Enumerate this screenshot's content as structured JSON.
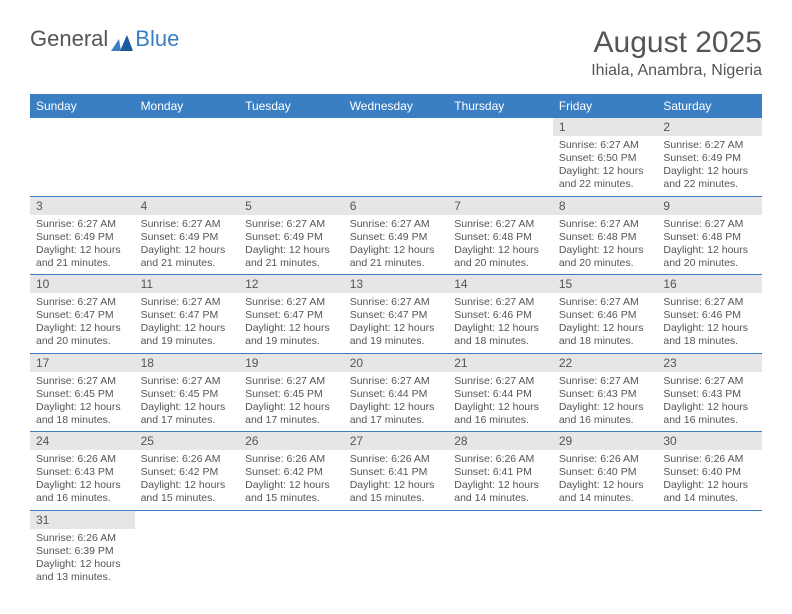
{
  "logo": {
    "text1": "General",
    "text2": "Blue"
  },
  "title": "August 2025",
  "subtitle": "Ihiala, Anambra, Nigeria",
  "colors": {
    "header_bg": "#3a7fc4",
    "header_text": "#ffffff",
    "daynum_bg": "#e6e6e6",
    "text": "#555555",
    "row_border": "#3a7fc4"
  },
  "daynames": [
    "Sunday",
    "Monday",
    "Tuesday",
    "Wednesday",
    "Thursday",
    "Friday",
    "Saturday"
  ],
  "weeks": [
    [
      null,
      null,
      null,
      null,
      null,
      {
        "n": "1",
        "sr": "6:27 AM",
        "ss": "6:50 PM",
        "dl": "12 hours and 22 minutes."
      },
      {
        "n": "2",
        "sr": "6:27 AM",
        "ss": "6:49 PM",
        "dl": "12 hours and 22 minutes."
      }
    ],
    [
      {
        "n": "3",
        "sr": "6:27 AM",
        "ss": "6:49 PM",
        "dl": "12 hours and 21 minutes."
      },
      {
        "n": "4",
        "sr": "6:27 AM",
        "ss": "6:49 PM",
        "dl": "12 hours and 21 minutes."
      },
      {
        "n": "5",
        "sr": "6:27 AM",
        "ss": "6:49 PM",
        "dl": "12 hours and 21 minutes."
      },
      {
        "n": "6",
        "sr": "6:27 AM",
        "ss": "6:49 PM",
        "dl": "12 hours and 21 minutes."
      },
      {
        "n": "7",
        "sr": "6:27 AM",
        "ss": "6:48 PM",
        "dl": "12 hours and 20 minutes."
      },
      {
        "n": "8",
        "sr": "6:27 AM",
        "ss": "6:48 PM",
        "dl": "12 hours and 20 minutes."
      },
      {
        "n": "9",
        "sr": "6:27 AM",
        "ss": "6:48 PM",
        "dl": "12 hours and 20 minutes."
      }
    ],
    [
      {
        "n": "10",
        "sr": "6:27 AM",
        "ss": "6:47 PM",
        "dl": "12 hours and 20 minutes."
      },
      {
        "n": "11",
        "sr": "6:27 AM",
        "ss": "6:47 PM",
        "dl": "12 hours and 19 minutes."
      },
      {
        "n": "12",
        "sr": "6:27 AM",
        "ss": "6:47 PM",
        "dl": "12 hours and 19 minutes."
      },
      {
        "n": "13",
        "sr": "6:27 AM",
        "ss": "6:47 PM",
        "dl": "12 hours and 19 minutes."
      },
      {
        "n": "14",
        "sr": "6:27 AM",
        "ss": "6:46 PM",
        "dl": "12 hours and 18 minutes."
      },
      {
        "n": "15",
        "sr": "6:27 AM",
        "ss": "6:46 PM",
        "dl": "12 hours and 18 minutes."
      },
      {
        "n": "16",
        "sr": "6:27 AM",
        "ss": "6:46 PM",
        "dl": "12 hours and 18 minutes."
      }
    ],
    [
      {
        "n": "17",
        "sr": "6:27 AM",
        "ss": "6:45 PM",
        "dl": "12 hours and 18 minutes."
      },
      {
        "n": "18",
        "sr": "6:27 AM",
        "ss": "6:45 PM",
        "dl": "12 hours and 17 minutes."
      },
      {
        "n": "19",
        "sr": "6:27 AM",
        "ss": "6:45 PM",
        "dl": "12 hours and 17 minutes."
      },
      {
        "n": "20",
        "sr": "6:27 AM",
        "ss": "6:44 PM",
        "dl": "12 hours and 17 minutes."
      },
      {
        "n": "21",
        "sr": "6:27 AM",
        "ss": "6:44 PM",
        "dl": "12 hours and 16 minutes."
      },
      {
        "n": "22",
        "sr": "6:27 AM",
        "ss": "6:43 PM",
        "dl": "12 hours and 16 minutes."
      },
      {
        "n": "23",
        "sr": "6:27 AM",
        "ss": "6:43 PM",
        "dl": "12 hours and 16 minutes."
      }
    ],
    [
      {
        "n": "24",
        "sr": "6:26 AM",
        "ss": "6:43 PM",
        "dl": "12 hours and 16 minutes."
      },
      {
        "n": "25",
        "sr": "6:26 AM",
        "ss": "6:42 PM",
        "dl": "12 hours and 15 minutes."
      },
      {
        "n": "26",
        "sr": "6:26 AM",
        "ss": "6:42 PM",
        "dl": "12 hours and 15 minutes."
      },
      {
        "n": "27",
        "sr": "6:26 AM",
        "ss": "6:41 PM",
        "dl": "12 hours and 15 minutes."
      },
      {
        "n": "28",
        "sr": "6:26 AM",
        "ss": "6:41 PM",
        "dl": "12 hours and 14 minutes."
      },
      {
        "n": "29",
        "sr": "6:26 AM",
        "ss": "6:40 PM",
        "dl": "12 hours and 14 minutes."
      },
      {
        "n": "30",
        "sr": "6:26 AM",
        "ss": "6:40 PM",
        "dl": "12 hours and 14 minutes."
      }
    ],
    [
      {
        "n": "31",
        "sr": "6:26 AM",
        "ss": "6:39 PM",
        "dl": "12 hours and 13 minutes."
      },
      null,
      null,
      null,
      null,
      null,
      null
    ]
  ],
  "labels": {
    "sunrise": "Sunrise:",
    "sunset": "Sunset:",
    "daylight": "Daylight:"
  }
}
